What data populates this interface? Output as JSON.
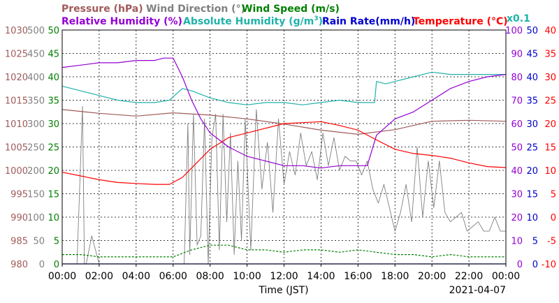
{
  "chart_data": {
    "type": "line",
    "date": "2021-04-07",
    "xlabel": "Time (JST)",
    "x_ticks": [
      "00:00",
      "02:00",
      "04:00",
      "06:00",
      "08:00",
      "10:00",
      "12:00",
      "14:00",
      "16:00",
      "18:00",
      "20:00",
      "22:00",
      "00:00"
    ],
    "grid": true,
    "header": {
      "row1": [
        {
          "text": "Pressure (hPa)",
          "color": "#a05a5a"
        },
        {
          "text": "Wind Direction (°)",
          "color": "#808080"
        },
        {
          "text": "Wind Speed (m/s)",
          "color": "#008000"
        }
      ],
      "row2": [
        {
          "text": "Relative Humidity (%)",
          "color": "#9400d3"
        },
        {
          "text": "Absolute Humidity (g/m",
          "sup": "3",
          "tail": ")",
          "color": "#20b2aa"
        },
        {
          "text": "Rain Rate(mm/h)",
          "color": "#0000cd"
        },
        {
          "text": "Temperature (°C)",
          "color": "#ff0000"
        }
      ],
      "multiplier": {
        "text": "x0.1",
        "color": "#20b2aa"
      }
    },
    "axes": {
      "pressure": {
        "ticks": [
          "1030",
          "1025",
          "1020",
          "1015",
          "1010",
          "1005",
          "1000",
          "995",
          "990",
          "985",
          "980"
        ],
        "range": [
          980,
          1030
        ],
        "color": "#a05a5a"
      },
      "wind_direction": {
        "ticks": [
          "500",
          "450",
          "400",
          "350",
          "300",
          "250",
          "200",
          "150",
          "100",
          "50",
          "0"
        ],
        "range": [
          0,
          500
        ],
        "color": "#808080"
      },
      "wind_speed": {
        "ticks": [
          "50",
          "45",
          "40",
          "35",
          "30",
          "25",
          "20",
          "15",
          "10",
          "5",
          "0"
        ],
        "range": [
          0,
          50
        ],
        "color": "#008000"
      },
      "humidity": {
        "ticks": [
          "100",
          "90",
          "80",
          "70",
          "60",
          "50",
          "40",
          "30",
          "20",
          "10",
          "0"
        ],
        "range": [
          0,
          100
        ],
        "color": "#9400d3"
      },
      "rain_rate": {
        "ticks": [
          "50",
          "45",
          "40",
          "35",
          "30",
          "25",
          "20",
          "15",
          "10",
          "5",
          "0"
        ],
        "range": [
          0,
          50
        ],
        "color": "#0000cd"
      },
      "temperature": {
        "ticks": [
          "40",
          "35",
          "30",
          "25",
          "20",
          "15",
          "10",
          "5",
          "0",
          "-5",
          "-10"
        ],
        "range": [
          -10,
          40
        ],
        "color": "#ff0000"
      }
    },
    "series": [
      {
        "name": "Pressure (hPa)",
        "axis": "pressure",
        "color": "#a05a5a",
        "x": [
          0,
          2,
          4,
          6,
          8,
          10,
          12,
          14,
          16,
          18,
          20,
          22,
          24
        ],
        "values": [
          1013.0,
          1012.2,
          1011.6,
          1012.3,
          1011.8,
          1011.0,
          1009.9,
          1008.6,
          1007.7,
          1008.7,
          1010.5,
          1010.7,
          1010.5
        ]
      },
      {
        "name": "Relative Humidity (%)",
        "axis": "humidity",
        "color": "#9400d3",
        "x": [
          0,
          1,
          2,
          3,
          4,
          5,
          5.5,
          6,
          6.5,
          7,
          7.5,
          8,
          9,
          10,
          11,
          12,
          13,
          14,
          15,
          16,
          16.5,
          17,
          18,
          19,
          20,
          21,
          22,
          23,
          24
        ],
        "values": [
          84,
          85,
          86,
          86,
          87,
          87,
          88,
          88,
          80,
          70,
          62,
          56,
          50,
          46,
          44,
          42,
          42,
          41,
          42,
          42,
          42,
          55,
          62,
          65,
          70,
          75,
          78,
          80,
          81
        ]
      },
      {
        "name": "Absolute Humidity (g/m3) x0.1",
        "axis": "humidity",
        "color": "#20b2aa",
        "x": [
          0,
          1,
          2,
          3,
          4,
          5,
          5.8,
          6.5,
          7,
          8,
          9,
          10,
          11,
          12,
          13,
          14,
          15,
          16,
          16.9,
          17,
          17.5,
          18,
          19,
          20,
          21,
          22,
          23,
          24
        ],
        "values": [
          76,
          74,
          72,
          70,
          69,
          69,
          70,
          75,
          74,
          71,
          69,
          68,
          69,
          69,
          68,
          69,
          70,
          69,
          69,
          78,
          77,
          78,
          80,
          82,
          81,
          81,
          81,
          81
        ]
      },
      {
        "name": "Rain Rate(mm/h)",
        "axis": "rain_rate",
        "color": "#0000cd",
        "x": [
          0,
          24
        ],
        "values": [
          0,
          0
        ]
      },
      {
        "name": "Temperature (°C)",
        "axis": "temperature",
        "color": "#ff0000",
        "x": [
          0,
          1,
          2,
          3,
          4,
          5,
          5.8,
          6.5,
          7,
          8,
          9,
          10,
          11,
          12,
          13,
          14,
          15,
          16,
          17,
          18,
          19,
          20,
          21,
          22,
          23,
          24
        ],
        "values": [
          9.6,
          8.8,
          8.0,
          7.4,
          7.2,
          7.0,
          7.0,
          8.5,
          10.5,
          14.5,
          17.0,
          18.0,
          19.0,
          20.0,
          20.2,
          20.4,
          19.6,
          18.6,
          16.5,
          14.5,
          13.6,
          13.2,
          12.6,
          11.6,
          10.8,
          10.6
        ]
      },
      {
        "name": "Wind Direction (°)",
        "axis": "wind_direction",
        "color": "#808080",
        "x": [
          0,
          0.8,
          1.1,
          1.2,
          1.3,
          1.6,
          2,
          3,
          4,
          5,
          6,
          6.6,
          6.8,
          6.9,
          7.1,
          7.3,
          7.5,
          7.7,
          7.9,
          8.1,
          8.3,
          8.5,
          8.7,
          8.9,
          9.1,
          9.3,
          9.5,
          9.7,
          9.9,
          10.2,
          10.5,
          10.8,
          11.1,
          11.4,
          11.7,
          12,
          12.3,
          12.6,
          12.9,
          13.2,
          13.5,
          13.8,
          14.1,
          14.4,
          14.7,
          15,
          15.3,
          15.6,
          15.9,
          16.2,
          16.5,
          16.8,
          17.1,
          17.4,
          17.7,
          18,
          18.3,
          18.6,
          18.9,
          19.2,
          19.5,
          19.8,
          20.1,
          20.4,
          20.7,
          21,
          21.3,
          21.6,
          21.9,
          22.2,
          22.5,
          22.8,
          23.1,
          23.4,
          23.7,
          24
        ],
        "values": [
          0,
          0,
          337,
          0,
          0,
          60,
          0,
          0,
          0,
          0,
          0,
          0,
          300,
          20,
          320,
          40,
          60,
          310,
          0,
          270,
          320,
          30,
          320,
          90,
          280,
          20,
          220,
          50,
          310,
          30,
          330,
          160,
          260,
          110,
          310,
          170,
          240,
          190,
          280,
          210,
          240,
          180,
          280,
          210,
          270,
          200,
          230,
          220,
          220,
          190,
          220,
          160,
          130,
          170,
          120,
          70,
          110,
          170,
          90,
          250,
          100,
          220,
          120,
          220,
          110,
          90,
          100,
          110,
          70,
          80,
          90,
          70,
          70,
          100,
          70,
          70
        ]
      },
      {
        "name": "Wind Speed (m/s)",
        "axis": "wind_speed",
        "color": "#008000",
        "x": [
          0,
          1,
          2,
          3,
          4,
          5,
          6,
          7,
          8,
          9,
          10,
          11,
          12,
          13,
          14,
          15,
          16,
          17,
          18,
          19,
          20,
          21,
          22,
          23,
          24
        ],
        "values": [
          2,
          2,
          1.5,
          1.5,
          1.5,
          1.5,
          1.5,
          3,
          4,
          4,
          3,
          3,
          2.5,
          3,
          3,
          2.5,
          3,
          2.5,
          2,
          2,
          1.5,
          2,
          1.5,
          1.5,
          1.5
        ]
      }
    ]
  }
}
